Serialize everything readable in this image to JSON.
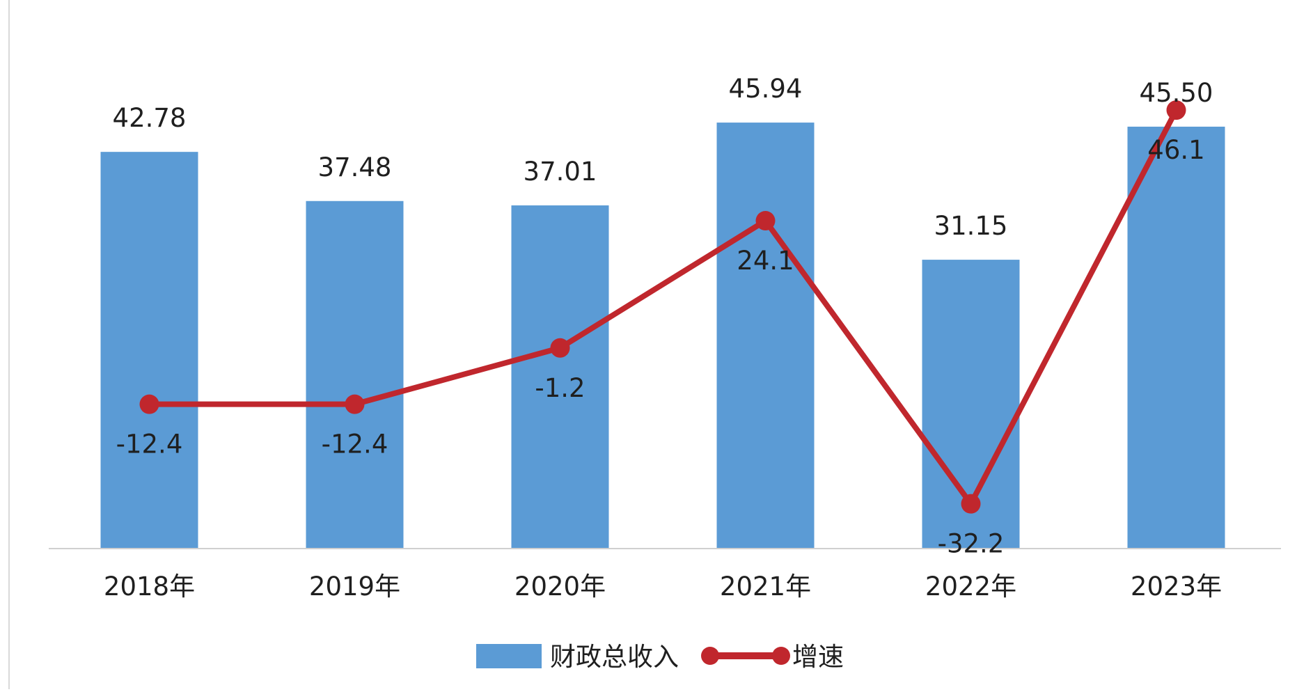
{
  "chart_data": {
    "type": "bar",
    "categories": [
      "2018年",
      "2019年",
      "2020年",
      "2021年",
      "2022年",
      "2023年"
    ],
    "series": [
      {
        "name": "财政总收入",
        "type": "bar",
        "values": [
          42.78,
          37.48,
          37.01,
          45.94,
          31.15,
          45.5
        ],
        "labels": [
          "42.78",
          "37.48",
          "37.01",
          "45.94",
          "31.15",
          "45.50"
        ],
        "color": "#5b9bd5"
      },
      {
        "name": "增速",
        "type": "line",
        "values": [
          -12.4,
          -12.4,
          -1.2,
          24.1,
          -32.2,
          46.1
        ],
        "labels": [
          "-12.4",
          "-12.4",
          "-1.2",
          "24.1",
          "-32.2",
          "46.1"
        ],
        "color": "#c0272d"
      }
    ],
    "bar_axis_range": [
      0,
      50
    ],
    "line_axis_range": [
      -40,
      50
    ],
    "grid": false,
    "legend_position": "bottom"
  }
}
